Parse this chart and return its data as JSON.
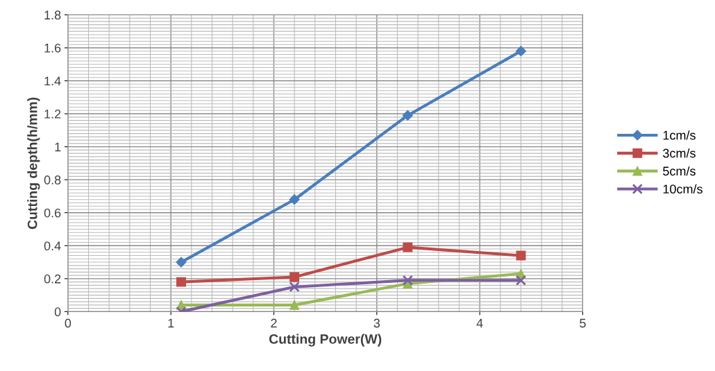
{
  "chart_data": {
    "type": "line",
    "xlabel": "Cutting Power(W)",
    "ylabel": "Cutting depth(h/mm)",
    "x": [
      1.1,
      2.2,
      3.3,
      4.4
    ],
    "series": [
      {
        "name": "1cm/s",
        "color": "#4a7ebb",
        "marker": "diamond",
        "values": [
          0.3,
          0.68,
          1.19,
          1.58
        ]
      },
      {
        "name": "3cm/s",
        "color": "#be4b48",
        "marker": "square",
        "values": [
          0.18,
          0.21,
          0.39,
          0.34
        ]
      },
      {
        "name": "5cm/s",
        "color": "#98b954",
        "marker": "triangle",
        "values": [
          0.04,
          0.04,
          0.17,
          0.23
        ]
      },
      {
        "name": "10cm/s",
        "color": "#7d60a0",
        "marker": "cross",
        "values": [
          0,
          0.15,
          0.19,
          0.19
        ]
      }
    ],
    "xlim": [
      0,
      5
    ],
    "xticks": [
      0,
      1,
      2,
      3,
      4,
      5
    ],
    "ylim": [
      0,
      1.8
    ],
    "yticks": [
      0,
      0.2,
      0.4,
      0.6,
      0.8,
      1,
      1.2,
      1.4,
      1.6,
      1.8
    ],
    "grid": true,
    "legend": "right",
    "line_style": "solid"
  }
}
